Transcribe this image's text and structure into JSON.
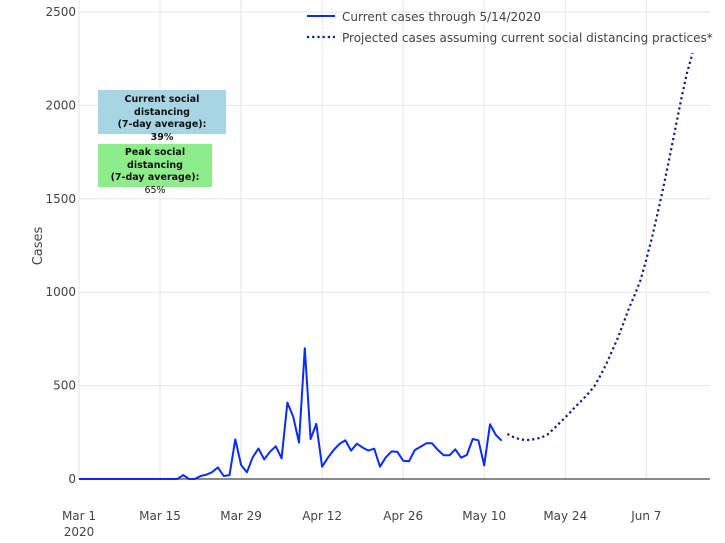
{
  "chart_data": {
    "type": "line",
    "title": "",
    "xlabel": "",
    "ylabel": "Cases",
    "ylim": [
      0,
      2500
    ],
    "yticks": [
      0,
      500,
      1000,
      1500,
      2000,
      2500
    ],
    "xticks": [
      {
        "date": "2020-03-01",
        "label": "Mar 1",
        "sublabel": "2020"
      },
      {
        "date": "2020-03-15",
        "label": "Mar 15"
      },
      {
        "date": "2020-03-29",
        "label": "Mar 29"
      },
      {
        "date": "2020-04-12",
        "label": "Apr 12"
      },
      {
        "date": "2020-04-26",
        "label": "Apr 26"
      },
      {
        "date": "2020-05-10",
        "label": "May 10"
      },
      {
        "date": "2020-05-24",
        "label": "May 24"
      },
      {
        "date": "2020-06-07",
        "label": "Jun 7"
      }
    ],
    "xlim": [
      "2020-03-01",
      "2020-06-18"
    ],
    "grid": true,
    "legend_position": "top-right",
    "series": [
      {
        "name": "Current cases through 5/14/2020",
        "style": "solid",
        "color": "#0a2cf5",
        "points": [
          [
            "2020-03-01",
            0
          ],
          [
            "2020-03-02",
            0
          ],
          [
            "2020-03-03",
            0
          ],
          [
            "2020-03-04",
            0
          ],
          [
            "2020-03-05",
            0
          ],
          [
            "2020-03-06",
            0
          ],
          [
            "2020-03-07",
            0
          ],
          [
            "2020-03-08",
            0
          ],
          [
            "2020-03-09",
            0
          ],
          [
            "2020-03-10",
            0
          ],
          [
            "2020-03-11",
            0
          ],
          [
            "2020-03-12",
            0
          ],
          [
            "2020-03-13",
            0
          ],
          [
            "2020-03-14",
            0
          ],
          [
            "2020-03-15",
            0
          ],
          [
            "2020-03-16",
            0
          ],
          [
            "2020-03-17",
            0
          ],
          [
            "2020-03-18",
            0
          ],
          [
            "2020-03-19",
            21
          ],
          [
            "2020-03-20",
            0
          ],
          [
            "2020-03-21",
            0
          ],
          [
            "2020-03-22",
            16
          ],
          [
            "2020-03-23",
            23
          ],
          [
            "2020-03-24",
            37
          ],
          [
            "2020-03-25",
            62
          ],
          [
            "2020-03-26",
            16
          ],
          [
            "2020-03-27",
            21
          ],
          [
            "2020-03-28",
            212
          ],
          [
            "2020-03-29",
            75
          ],
          [
            "2020-03-30",
            36
          ],
          [
            "2020-03-31",
            116
          ],
          [
            "2020-04-01",
            163
          ],
          [
            "2020-04-02",
            105
          ],
          [
            "2020-04-03",
            146
          ],
          [
            "2020-04-04",
            175
          ],
          [
            "2020-04-05",
            111
          ],
          [
            "2020-04-06",
            409
          ],
          [
            "2020-04-07",
            334
          ],
          [
            "2020-04-08",
            195
          ],
          [
            "2020-04-09",
            700
          ],
          [
            "2020-04-10",
            214
          ],
          [
            "2020-04-11",
            295
          ],
          [
            "2020-04-12",
            66
          ],
          [
            "2020-04-13",
            114
          ],
          [
            "2020-04-14",
            155
          ],
          [
            "2020-04-15",
            188
          ],
          [
            "2020-04-16",
            207
          ],
          [
            "2020-04-17",
            152
          ],
          [
            "2020-04-18",
            189
          ],
          [
            "2020-04-19",
            168
          ],
          [
            "2020-04-20",
            152
          ],
          [
            "2020-04-21",
            162
          ],
          [
            "2020-04-22",
            66
          ],
          [
            "2020-04-23",
            116
          ],
          [
            "2020-04-24",
            148
          ],
          [
            "2020-04-25",
            145
          ],
          [
            "2020-04-26",
            98
          ],
          [
            "2020-04-27",
            95
          ],
          [
            "2020-04-28",
            155
          ],
          [
            "2020-04-29",
            173
          ],
          [
            "2020-04-30",
            191
          ],
          [
            "2020-05-01",
            191
          ],
          [
            "2020-05-02",
            155
          ],
          [
            "2020-05-03",
            127
          ],
          [
            "2020-05-04",
            127
          ],
          [
            "2020-05-05",
            159
          ],
          [
            "2020-05-06",
            114
          ],
          [
            "2020-05-07",
            129
          ],
          [
            "2020-05-08",
            214
          ],
          [
            "2020-05-09",
            207
          ],
          [
            "2020-05-10",
            73
          ],
          [
            "2020-05-11",
            293
          ],
          [
            "2020-05-12",
            236
          ],
          [
            "2020-05-13",
            205
          ]
        ]
      },
      {
        "name": "Projected cases assuming current social distancing practices*",
        "style": "dotted",
        "color": "#0c1f7a",
        "points": [
          [
            "2020-05-14",
            241
          ],
          [
            "2020-05-15",
            225
          ],
          [
            "2020-05-16",
            214
          ],
          [
            "2020-05-17",
            209
          ],
          [
            "2020-05-18",
            210
          ],
          [
            "2020-05-19",
            215
          ],
          [
            "2020-05-20",
            223
          ],
          [
            "2020-05-21",
            240
          ],
          [
            "2020-05-22",
            268
          ],
          [
            "2020-05-23",
            300
          ],
          [
            "2020-05-24",
            330
          ],
          [
            "2020-05-25",
            362
          ],
          [
            "2020-05-26",
            395
          ],
          [
            "2020-05-27",
            425
          ],
          [
            "2020-05-28",
            458
          ],
          [
            "2020-05-29",
            495
          ],
          [
            "2020-05-30",
            550
          ],
          [
            "2020-05-31",
            610
          ],
          [
            "2020-06-01",
            680
          ],
          [
            "2020-06-02",
            750
          ],
          [
            "2020-06-03",
            830
          ],
          [
            "2020-06-04",
            915
          ],
          [
            "2020-06-05",
            985
          ],
          [
            "2020-06-06",
            1065
          ],
          [
            "2020-06-07",
            1175
          ],
          [
            "2020-06-08",
            1295
          ],
          [
            "2020-06-09",
            1430
          ],
          [
            "2020-06-10",
            1570
          ],
          [
            "2020-06-11",
            1720
          ],
          [
            "2020-06-12",
            1875
          ],
          [
            "2020-06-13",
            2030
          ],
          [
            "2020-06-14",
            2170
          ],
          [
            "2020-06-15",
            2280
          ]
        ]
      }
    ],
    "annotations": [
      {
        "title": "Current social distancing",
        "subtitle": "(7-day average):",
        "value": "39%",
        "color": "#a8d5e4"
      },
      {
        "title": "Peak social distancing",
        "subtitle": "(7-day average):",
        "value": "65%",
        "color": "#8ded8a"
      }
    ]
  }
}
